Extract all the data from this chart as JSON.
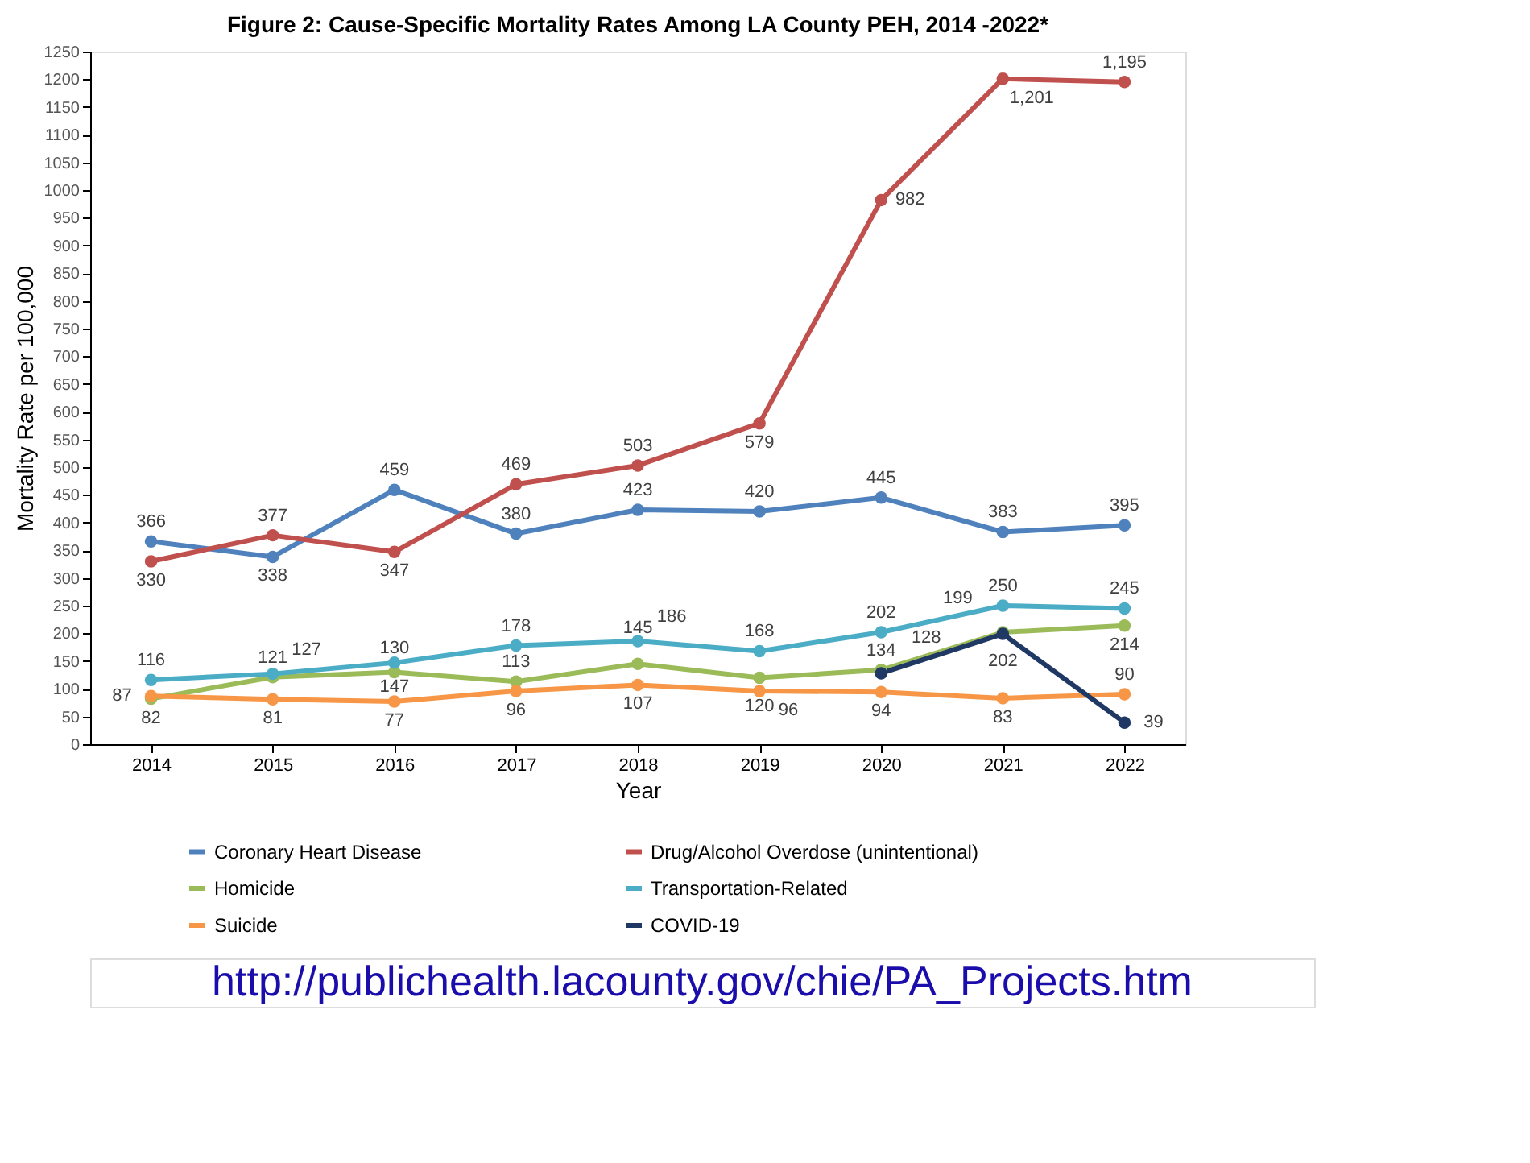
{
  "chart_data": {
    "type": "line",
    "title": "Figure 2: Cause-Specific Mortality Rates Among LA County PEH, 2014 -2022*",
    "xlabel": "Year",
    "ylabel": "Mortality Rate per 100,000",
    "categories": [
      "2014",
      "2015",
      "2016",
      "2017",
      "2018",
      "2019",
      "2020",
      "2021",
      "2022"
    ],
    "series": [
      {
        "name": "Coronary Heart Disease",
        "color": "#4f81bd",
        "values": [
          366,
          338,
          459,
          380,
          423,
          420,
          445,
          383,
          395
        ],
        "value_labels": [
          "366",
          "338",
          "459",
          "380",
          "423",
          "420",
          "445",
          "383",
          "395"
        ]
      },
      {
        "name": "Drug/Alcohol Overdose (unintentional)",
        "color": "#c0504d",
        "values": [
          330,
          377,
          347,
          469,
          503,
          579,
          982,
          1201,
          1195
        ],
        "value_labels": [
          "330",
          "377",
          "347",
          "469",
          "503",
          "579",
          "982",
          "1,201",
          "1,195"
        ]
      },
      {
        "name": "Homicide",
        "color": "#9bbb59",
        "values": [
          82,
          121,
          130,
          113,
          145,
          120,
          134,
          202,
          214
        ],
        "value_labels": [
          "82",
          "121",
          "130",
          "113",
          "145",
          "120",
          "134",
          "202",
          "214"
        ]
      },
      {
        "name": "Transportation-Related",
        "color": "#4bacc6",
        "values": [
          116,
          127,
          147,
          178,
          186,
          168,
          202,
          250,
          245
        ],
        "value_labels": [
          "116",
          "127",
          "147",
          "178",
          "186",
          "168",
          "202",
          "250",
          "245"
        ]
      },
      {
        "name": "Suicide",
        "color": "#f79646",
        "values": [
          87,
          81,
          77,
          96,
          107,
          96,
          94,
          83,
          90
        ],
        "value_labels": [
          "87",
          "81",
          "77",
          "96",
          "107",
          "96",
          "94",
          "83",
          "90"
        ]
      },
      {
        "name": "COVID-19",
        "color": "#1f3864",
        "values": [
          null,
          null,
          null,
          null,
          null,
          null,
          128,
          199,
          39
        ],
        "value_labels": [
          null,
          null,
          null,
          null,
          null,
          null,
          "128",
          "199",
          "39"
        ]
      }
    ],
    "ylim": [
      0,
      1250
    ],
    "yticks": [
      0,
      50,
      100,
      150,
      200,
      250,
      300,
      350,
      400,
      450,
      500,
      550,
      600,
      650,
      700,
      750,
      800,
      850,
      900,
      950,
      1000,
      1050,
      1100,
      1150,
      1200,
      1250
    ],
    "grid": false,
    "legend": "bottom",
    "marker": "circle",
    "line_style": "solid",
    "annotations": [
      "http://publichealth.lacounty.gov/chie/PA_Projects.htm"
    ]
  }
}
